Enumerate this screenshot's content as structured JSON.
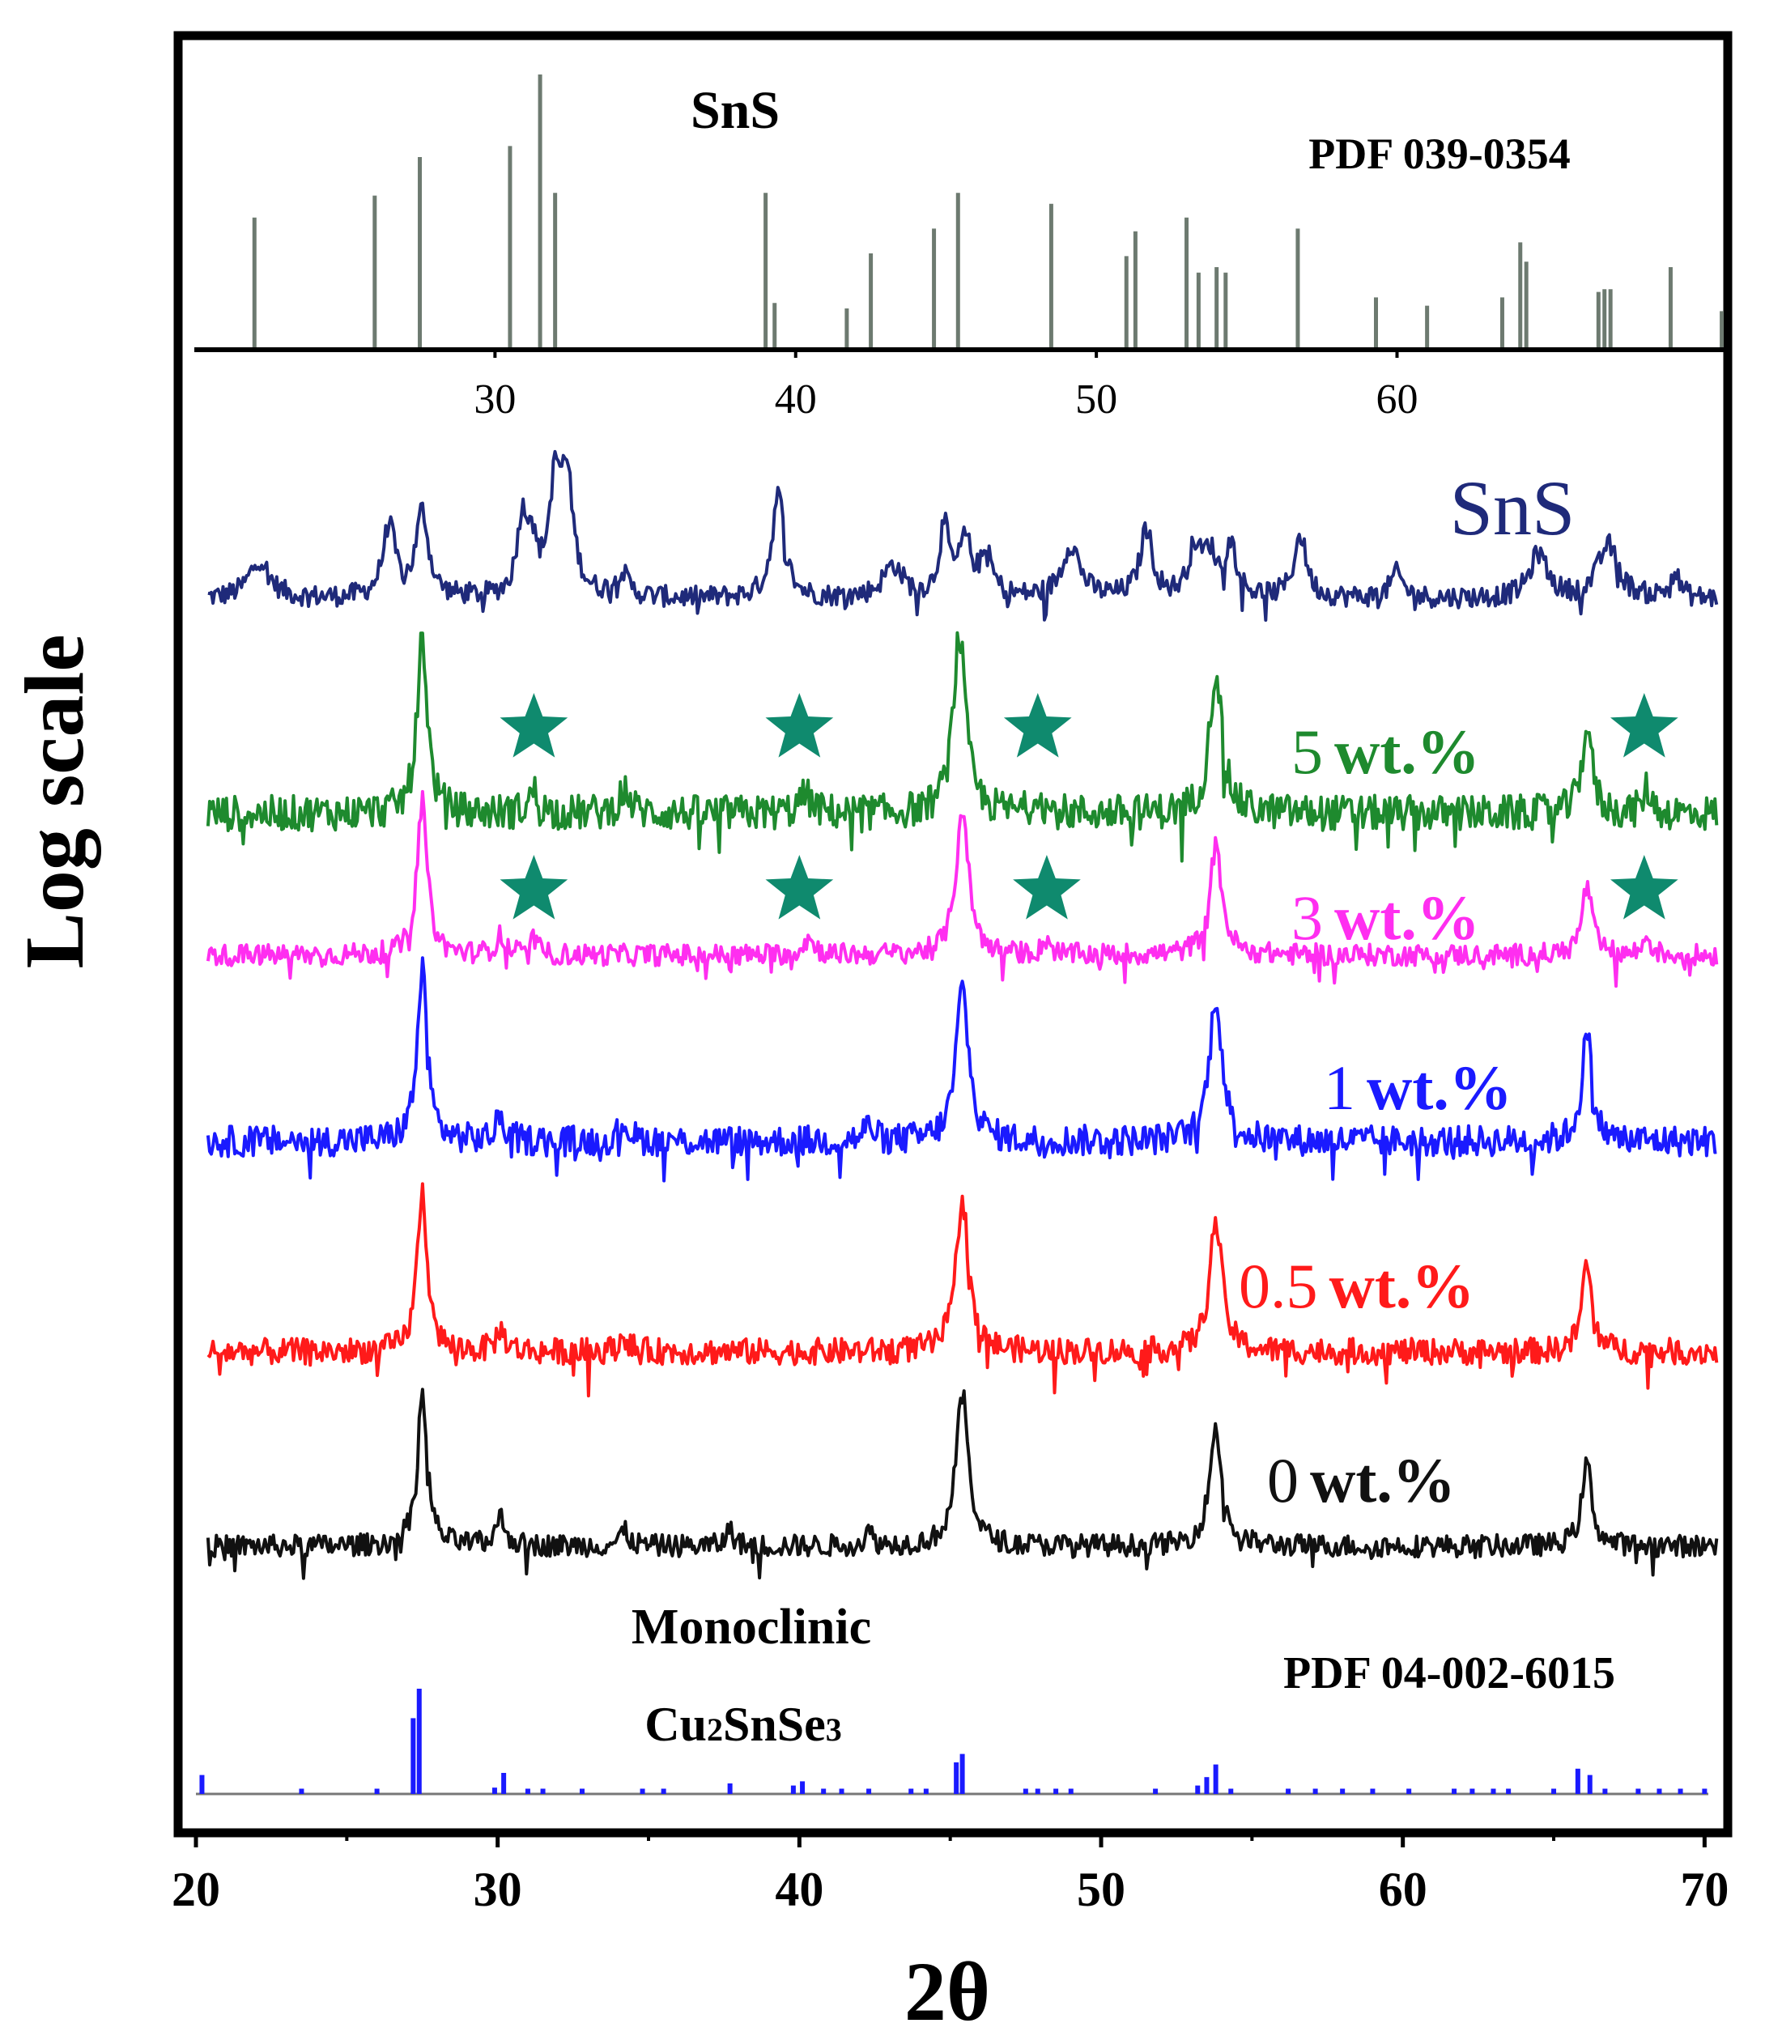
{
  "chart_data": [
    {
      "type": "bar",
      "title": "SnS",
      "subtitle": "PDF 039-0354",
      "xlim": [
        20,
        71
      ],
      "x_ticks": [
        "30",
        "40",
        "50",
        "60"
      ],
      "tick_values": [
        30,
        40,
        50,
        60
      ],
      "ylim": [
        0,
        100
      ],
      "peaks_2theta": [
        22.0,
        26.0,
        27.5,
        30.5,
        31.5,
        32.0,
        39.0,
        39.3,
        41.7,
        42.5,
        44.6,
        45.4,
        48.5,
        51.0,
        51.3,
        53.0,
        53.4,
        54.0,
        54.3,
        56.7,
        59.3,
        61.0,
        63.5,
        64.1,
        64.3,
        66.7,
        66.9,
        67.1,
        69.1,
        70.8
      ],
      "peak_intensities": [
        48,
        56,
        70,
        74,
        100,
        57,
        57,
        17,
        15,
        35,
        44,
        57,
        53,
        34,
        43,
        48,
        28,
        30,
        28,
        44,
        19,
        16,
        19,
        39,
        32,
        21,
        22,
        22,
        30,
        14
      ]
    },
    {
      "type": "line",
      "xlabel": "2θ",
      "ylabel": "Log scale",
      "xlim": [
        20,
        70.5
      ],
      "x_ticks": [
        "20",
        "30",
        "40",
        "50",
        "60",
        "70"
      ],
      "tick_values": [
        20,
        30,
        40,
        50,
        60,
        70
      ],
      "series": [
        {
          "name": "SnS",
          "label_text": "SnS",
          "color": "#1f2a7a",
          "peaks": [
            [
              22.1,
              22,
              0.8
            ],
            [
              26.4,
              40,
              0.5
            ],
            [
              27.5,
              48,
              0.5
            ],
            [
              30.8,
              38,
              0.4
            ],
            [
              31.1,
              28,
              0.4
            ],
            [
              31.9,
              58,
              0.5
            ],
            [
              32.3,
              60,
              0.5
            ],
            [
              34.1,
              14,
              0.5
            ],
            [
              39.3,
              58,
              0.5
            ],
            [
              43.1,
              18,
              0.8
            ],
            [
              44.8,
              38,
              0.4
            ],
            [
              45.5,
              30,
              0.5
            ],
            [
              46.2,
              22,
              0.5
            ],
            [
              49.0,
              30,
              0.7
            ],
            [
              51.5,
              38,
              0.5
            ],
            [
              53.1,
              26,
              0.5
            ],
            [
              53.6,
              22,
              0.5
            ],
            [
              54.3,
              28,
              0.5
            ],
            [
              56.6,
              35,
              0.5
            ],
            [
              59.8,
              14,
              0.5
            ],
            [
              64.5,
              25,
              0.7
            ],
            [
              66.8,
              30,
              0.8
            ],
            [
              69.0,
              14,
              0.4
            ]
          ],
          "noise_amplitude": 6
        },
        {
          "name": "5 wt.%",
          "number_text": "5",
          "unit_text": "wt.%",
          "color": "#1e8a2e",
          "peaks": [
            [
              27.5,
              100,
              0.4
            ],
            [
              31.2,
              12,
              0.4
            ],
            [
              34.2,
              14,
              0.4
            ],
            [
              40.2,
              10,
              0.5
            ],
            [
              45.3,
              100,
              0.5
            ],
            [
              47.9,
              12,
              0.3
            ],
            [
              53.8,
              80,
              0.5
            ],
            [
              66.1,
              50,
              0.4
            ],
            [
              68.1,
              14,
              0.3
            ]
          ],
          "noise_amplitude": 10
        },
        {
          "name": "3 wt.%",
          "number_text": "3",
          "unit_text": "wt.%",
          "color": "#ff2ef0",
          "peaks": [
            [
              27.5,
              100,
              0.4
            ],
            [
              30.1,
              12,
              0.4
            ],
            [
              31.2,
              10,
              0.3
            ],
            [
              40.3,
              10,
              0.5
            ],
            [
              45.4,
              95,
              0.5
            ],
            [
              48.2,
              10,
              0.3
            ],
            [
              53.8,
              70,
              0.5
            ],
            [
              66.1,
              45,
              0.4
            ],
            [
              68.1,
              12,
              0.3
            ]
          ],
          "noise_amplitude": 7
        },
        {
          "name": "1 wt.%",
          "number_text": "1",
          "unit_text": "wt.%",
          "color": "#1a1aff",
          "peaks": [
            [
              27.5,
              110,
              0.4
            ],
            [
              30.1,
              14,
              0.4
            ],
            [
              34.2,
              12,
              0.4
            ],
            [
              42.3,
              10,
              0.4
            ],
            [
              45.4,
              100,
              0.5
            ],
            [
              53.8,
              95,
              0.5
            ],
            [
              66.1,
              70,
              0.4
            ]
          ],
          "noise_amplitude": 10
        },
        {
          "name": "0.5 wt.%",
          "number_text": "0.5",
          "unit_text": "wt.%",
          "color": "#ff1a1a",
          "peaks": [
            [
              27.5,
              110,
              0.4
            ],
            [
              30.1,
              14,
              0.4
            ],
            [
              34.2,
              10,
              0.4
            ],
            [
              45.4,
              105,
              0.5
            ],
            [
              53.8,
              90,
              0.5
            ],
            [
              66.1,
              60,
              0.4
            ]
          ],
          "noise_amplitude": 9
        },
        {
          "name": "0 wt.%",
          "number_text": "0",
          "unit_text": "wt.%",
          "color": "#111111",
          "peaks": [
            [
              27.5,
              110,
              0.4
            ],
            [
              30.1,
              20,
              0.4
            ],
            [
              34.2,
              10,
              0.4
            ],
            [
              37.7,
              12,
              0.3
            ],
            [
              42.3,
              10,
              0.3
            ],
            [
              45.4,
              110,
              0.5
            ],
            [
              53.8,
              85,
              0.5
            ],
            [
              66.1,
              60,
              0.4
            ]
          ],
          "noise_amplitude": 8
        }
      ],
      "star_markers": [
        {
          "series": "5 wt.%",
          "x": [
            31.2,
            40.0,
            47.9,
            68.0
          ],
          "color": "#0f8a6e"
        },
        {
          "series": "3 wt.%",
          "x": [
            31.2,
            40.0,
            48.2,
            68.0
          ],
          "color": "#0f8a6e"
        }
      ],
      "reference": {
        "name": "Monoclinic Cu2SnSe3",
        "line1": "Monoclinic",
        "formula_prefix": "Cu",
        "formula_sub1": "2",
        "formula_mid": "SnSe",
        "formula_sub2": "3",
        "pdf_label": "PDF 04-002-6015",
        "color": "#1a1aff",
        "peaks_2theta": [
          20.2,
          23.5,
          26.0,
          27.2,
          27.4,
          29.9,
          30.2,
          31.0,
          31.5,
          32.8,
          34.8,
          35.5,
          37.7,
          39.8,
          40.1,
          40.8,
          41.4,
          42.3,
          43.7,
          44.2,
          45.2,
          45.4,
          47.5,
          47.9,
          48.5,
          49.0,
          51.8,
          53.2,
          53.5,
          53.8,
          54.3,
          56.2,
          57.1,
          58.0,
          59.0,
          60.2,
          61.7,
          62.3,
          63.0,
          63.5,
          65.0,
          65.8,
          66.2,
          66.7,
          67.8,
          68.5,
          69.2,
          70.0
        ],
        "peak_intensities": [
          18,
          5,
          5,
          72,
          100,
          6,
          20,
          5,
          5,
          5,
          5,
          5,
          10,
          8,
          12,
          5,
          5,
          5,
          5,
          5,
          30,
          38,
          5,
          5,
          5,
          5,
          5,
          8,
          16,
          28,
          5,
          5,
          5,
          5,
          5,
          5,
          5,
          5,
          5,
          5,
          5,
          24,
          18,
          5,
          5,
          5,
          5,
          5
        ]
      }
    }
  ]
}
